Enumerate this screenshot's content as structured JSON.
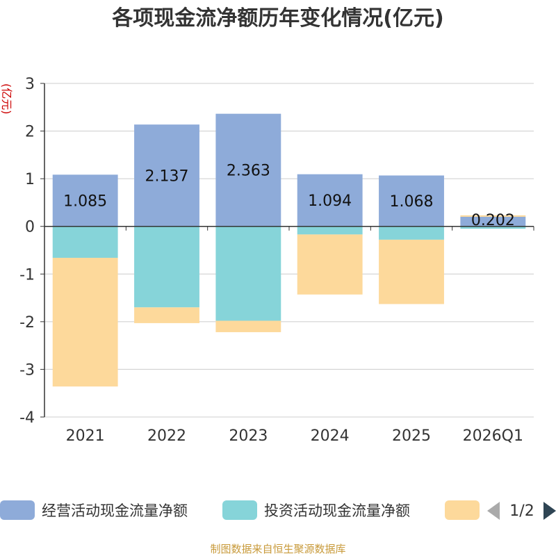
{
  "chart_data": {
    "type": "bar",
    "stacked": true,
    "title": "各项现金流净额历年变化情况(亿元)",
    "ylabel": "(亿元)",
    "xlabel": "",
    "categories": [
      "2021",
      "2022",
      "2023",
      "2024",
      "2025",
      "2026Q1"
    ],
    "ylim": [
      -4,
      3
    ],
    "yticks": [
      3,
      2,
      1,
      0,
      -1,
      -2,
      -3,
      -4
    ],
    "grid": true,
    "series": [
      {
        "name": "经营活动现金流量净额",
        "color": "#8eabd9",
        "values": [
          1.085,
          2.137,
          2.363,
          1.094,
          1.068,
          0.202
        ]
      },
      {
        "name": "投资活动现金流量净额",
        "color": "#86d4d9",
        "values": [
          -0.66,
          -1.7,
          -1.98,
          -0.17,
          -0.28,
          -0.05
        ]
      },
      {
        "name": "",
        "color": "#fdd99b",
        "values": [
          -2.7,
          -0.33,
          -0.24,
          -1.26,
          -1.35,
          0.03
        ]
      }
    ],
    "data_labels": [
      "1.085",
      "2.137",
      "2.363",
      "1.094",
      "1.068",
      "0.202"
    ],
    "legend_position": "bottom",
    "pager": "1/2",
    "source": "制图数据来自恒生聚源数据库"
  }
}
